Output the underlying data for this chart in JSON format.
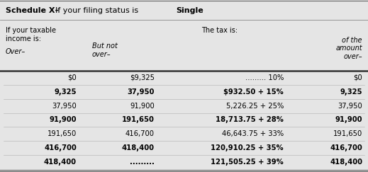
{
  "title_part1": "Schedule X–",
  "title_part2": "If your filing status is ",
  "title_part3": "Single",
  "header_col1_line1": "If your taxable",
  "header_col1_line2": "income is:",
  "header_col3": "The tax is:",
  "header_over": "Over–",
  "header_but_not": "But not",
  "header_over2": "over–",
  "header_of_the": "of the",
  "header_amount": "amount",
  "header_over3": "over–",
  "rows": [
    [
      "$0",
      "$9,325",
      "......... 10%",
      "$0"
    ],
    [
      "9,325",
      "37,950",
      "$932.50 + 15%",
      "9,325"
    ],
    [
      "37,950",
      "91,900",
      "5,226.25 + 25%",
      "37,950"
    ],
    [
      "91,900",
      "191,650",
      "18,713.75 + 28%",
      "91,900"
    ],
    [
      "191,650",
      "416,700",
      "46,643.75 + 33%",
      "191,650"
    ],
    [
      "416,700",
      "418,400",
      "120,910.25 + 35%",
      "416,700"
    ],
    [
      "418,400",
      ".........",
      "121,505.25 + 39%",
      "418,400"
    ]
  ],
  "bold_rows": [
    1,
    3,
    5,
    6
  ],
  "bg_color": "#e5e5e5",
  "border_color": "#666666",
  "thick_line_color": "#333333",
  "title_line_color": "#888888"
}
